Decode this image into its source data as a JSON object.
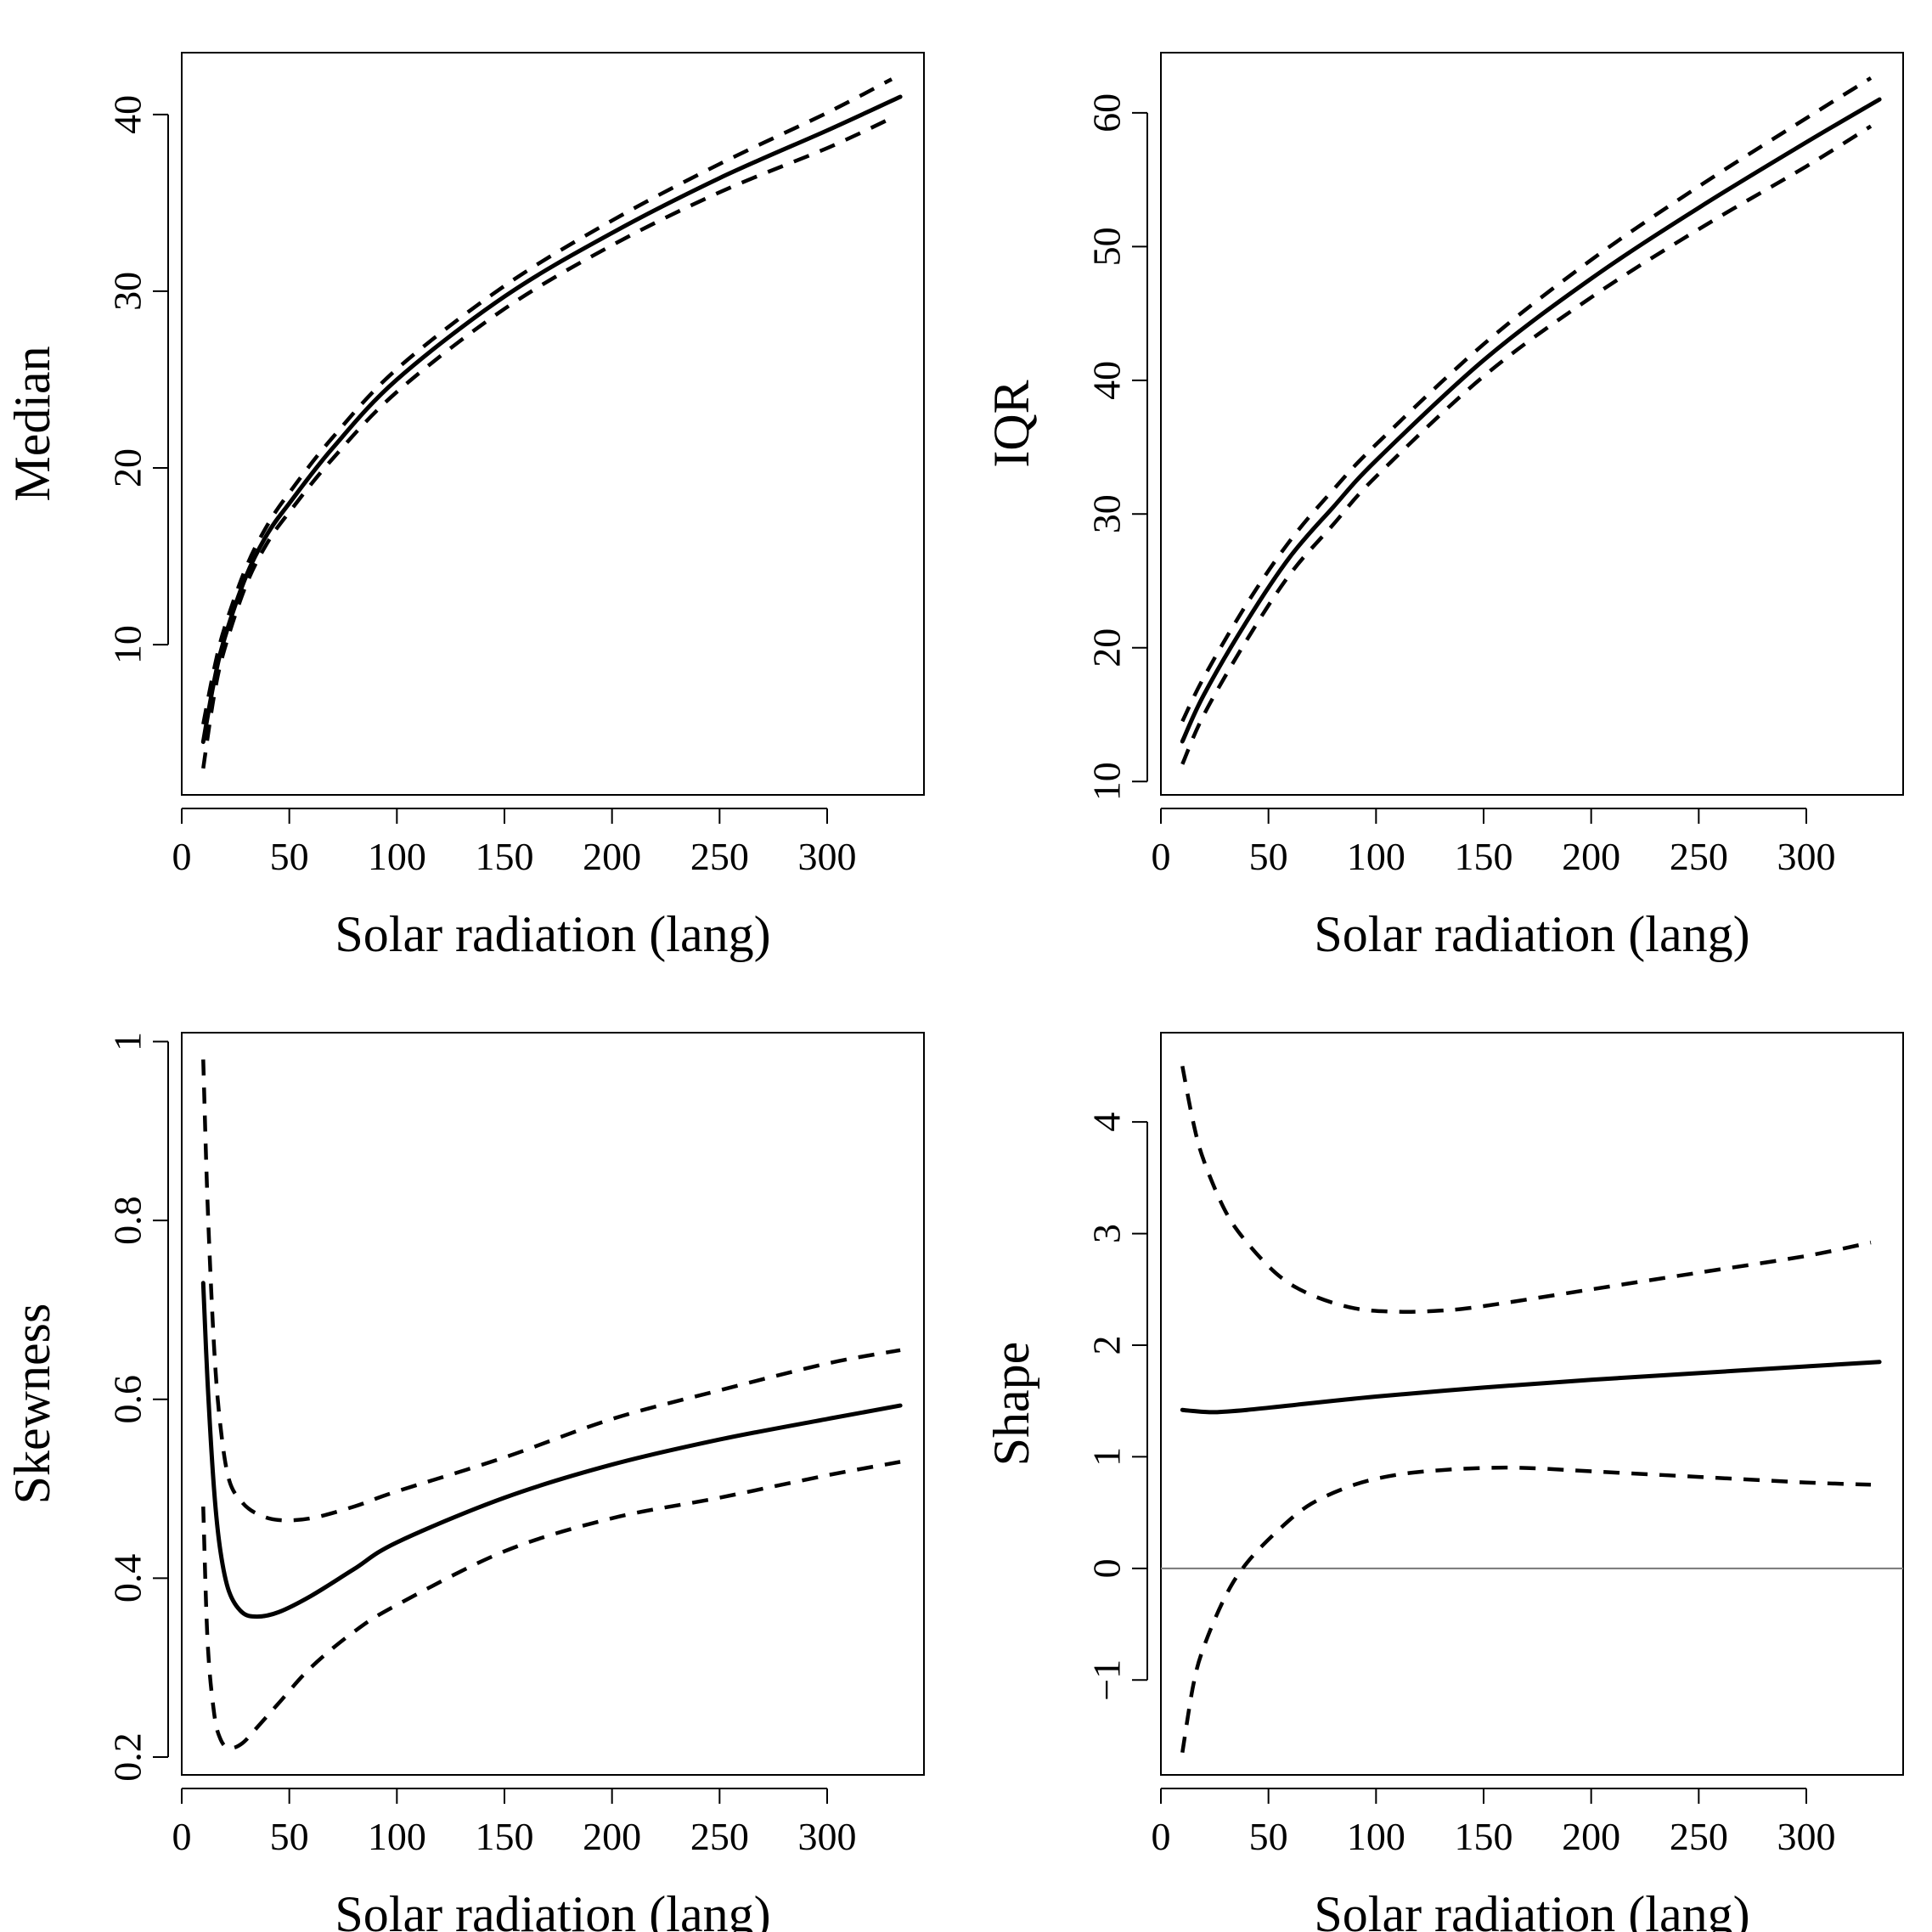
{
  "chart_data": [
    {
      "id": "median",
      "type": "line",
      "xlabel": "Solar radiation (lang)",
      "ylabel": "Median",
      "xlim": [
        0,
        345
      ],
      "ylim": [
        1.5,
        43.5
      ],
      "xticks": [
        0,
        50,
        100,
        150,
        200,
        250,
        300
      ],
      "yticks": [
        10,
        20,
        30,
        40
      ],
      "hline": null,
      "series": [
        {
          "style": "solid",
          "x": [
            10,
            15,
            20,
            30,
            40,
            50,
            70,
            100,
            150,
            200,
            250,
            300,
            334
          ],
          "y": [
            4.5,
            7.9,
            10.4,
            13.9,
            16.3,
            18.0,
            21.1,
            25.0,
            29.7,
            33.3,
            36.4,
            39.1,
            41.0
          ]
        },
        {
          "style": "dashed",
          "x": [
            10,
            15,
            20,
            30,
            40,
            50,
            70,
            100,
            150,
            200,
            250,
            300,
            330
          ],
          "y": [
            5.5,
            8.6,
            11.0,
            14.4,
            16.8,
            18.6,
            21.7,
            25.6,
            30.3,
            34.0,
            37.2,
            40.1,
            42.0
          ]
        },
        {
          "style": "dashed",
          "x": [
            10,
            15,
            20,
            30,
            40,
            50,
            70,
            100,
            150,
            200,
            250,
            300,
            330
          ],
          "y": [
            3.0,
            7.1,
            9.8,
            13.4,
            15.8,
            17.5,
            20.5,
            24.3,
            29.0,
            32.6,
            35.6,
            38.1,
            39.8
          ]
        }
      ]
    },
    {
      "id": "iqr",
      "type": "line",
      "xlabel": "Solar radiation (lang)",
      "ylabel": "IQR",
      "xlim": [
        0,
        345
      ],
      "ylim": [
        9,
        64.5
      ],
      "xticks": [
        0,
        50,
        100,
        150,
        200,
        250,
        300
      ],
      "yticks": [
        10,
        20,
        30,
        40,
        50,
        60
      ],
      "hline": null,
      "series": [
        {
          "style": "solid",
          "x": [
            10,
            20,
            40,
            60,
            80,
            100,
            150,
            200,
            250,
            300,
            334
          ],
          "y": [
            13.0,
            16.5,
            22.0,
            26.8,
            30.5,
            34.0,
            41.5,
            47.6,
            52.9,
            57.8,
            61.0
          ]
        },
        {
          "style": "dashed",
          "x": [
            10,
            20,
            40,
            60,
            80,
            100,
            150,
            200,
            250,
            300,
            330
          ],
          "y": [
            14.5,
            17.8,
            23.3,
            28.0,
            31.8,
            35.2,
            42.7,
            49.0,
            54.5,
            59.6,
            62.6
          ]
        },
        {
          "style": "dashed",
          "x": [
            10,
            20,
            40,
            60,
            80,
            100,
            150,
            200,
            250,
            300,
            330
          ],
          "y": [
            11.3,
            15.0,
            20.6,
            25.5,
            29.2,
            32.8,
            40.3,
            46.2,
            51.3,
            56.0,
            59.0
          ]
        }
      ]
    },
    {
      "id": "skewness",
      "type": "line",
      "xlabel": "Solar radiation (lang)",
      "ylabel": "Skewness",
      "xlim": [
        0,
        345
      ],
      "ylim": [
        0.18,
        1.01
      ],
      "xticks": [
        0,
        50,
        100,
        150,
        200,
        250,
        300
      ],
      "yticks": [
        0.2,
        0.4,
        0.6,
        0.8,
        1.0
      ],
      "hline": null,
      "series": [
        {
          "style": "solid",
          "x": [
            10,
            12,
            15,
            18,
            22,
            28,
            35,
            45,
            60,
            80,
            100,
            150,
            200,
            250,
            300,
            334
          ],
          "y": [
            0.73,
            0.62,
            0.5,
            0.43,
            0.385,
            0.362,
            0.357,
            0.362,
            0.38,
            0.41,
            0.44,
            0.49,
            0.527,
            0.555,
            0.578,
            0.593
          ]
        },
        {
          "style": "dashed",
          "x": [
            10,
            12,
            15,
            18,
            22,
            28,
            35,
            45,
            60,
            80,
            100,
            150,
            200,
            250,
            300,
            334
          ],
          "y": [
            0.98,
            0.82,
            0.66,
            0.57,
            0.51,
            0.485,
            0.472,
            0.465,
            0.467,
            0.48,
            0.497,
            0.535,
            0.578,
            0.61,
            0.64,
            0.655
          ]
        },
        {
          "style": "dashed",
          "x": [
            10,
            12,
            15,
            18,
            22,
            28,
            35,
            45,
            60,
            80,
            100,
            150,
            200,
            250,
            300,
            334
          ],
          "y": [
            0.48,
            0.33,
            0.25,
            0.22,
            0.21,
            0.215,
            0.233,
            0.26,
            0.3,
            0.34,
            0.37,
            0.43,
            0.467,
            0.49,
            0.515,
            0.53
          ]
        }
      ]
    },
    {
      "id": "shape",
      "type": "line",
      "xlabel": "Solar radiation (lang)",
      "ylabel": "Shape",
      "xlim": [
        0,
        345
      ],
      "ylim": [
        -1.85,
        4.8
      ],
      "xticks": [
        0,
        50,
        100,
        150,
        200,
        250,
        300
      ],
      "yticks": [
        -1,
        0,
        1,
        2,
        3,
        4
      ],
      "ytick_labels": [
        "−1",
        "0",
        "1",
        "2",
        "3",
        "4"
      ],
      "hline": 0,
      "series": [
        {
          "style": "solid",
          "x": [
            10,
            15,
            25,
            40,
            60,
            100,
            150,
            200,
            250,
            300,
            334
          ],
          "y": [
            1.42,
            1.41,
            1.4,
            1.42,
            1.46,
            1.54,
            1.62,
            1.69,
            1.75,
            1.81,
            1.85
          ]
        },
        {
          "style": "dashed",
          "x": [
            10,
            15,
            20,
            30,
            40,
            55,
            70,
            90,
            110,
            130,
            150,
            200,
            250,
            300,
            330
          ],
          "y": [
            4.5,
            4.0,
            3.65,
            3.2,
            2.92,
            2.62,
            2.45,
            2.33,
            2.3,
            2.31,
            2.35,
            2.5,
            2.65,
            2.8,
            2.92
          ]
        },
        {
          "style": "dashed",
          "x": [
            10,
            15,
            20,
            30,
            40,
            55,
            70,
            90,
            110,
            130,
            150,
            170,
            200,
            250,
            300,
            330
          ],
          "y": [
            -1.65,
            -1.05,
            -0.7,
            -0.25,
            0.05,
            0.35,
            0.58,
            0.75,
            0.84,
            0.88,
            0.9,
            0.9,
            0.87,
            0.82,
            0.77,
            0.75
          ]
        }
      ]
    }
  ]
}
